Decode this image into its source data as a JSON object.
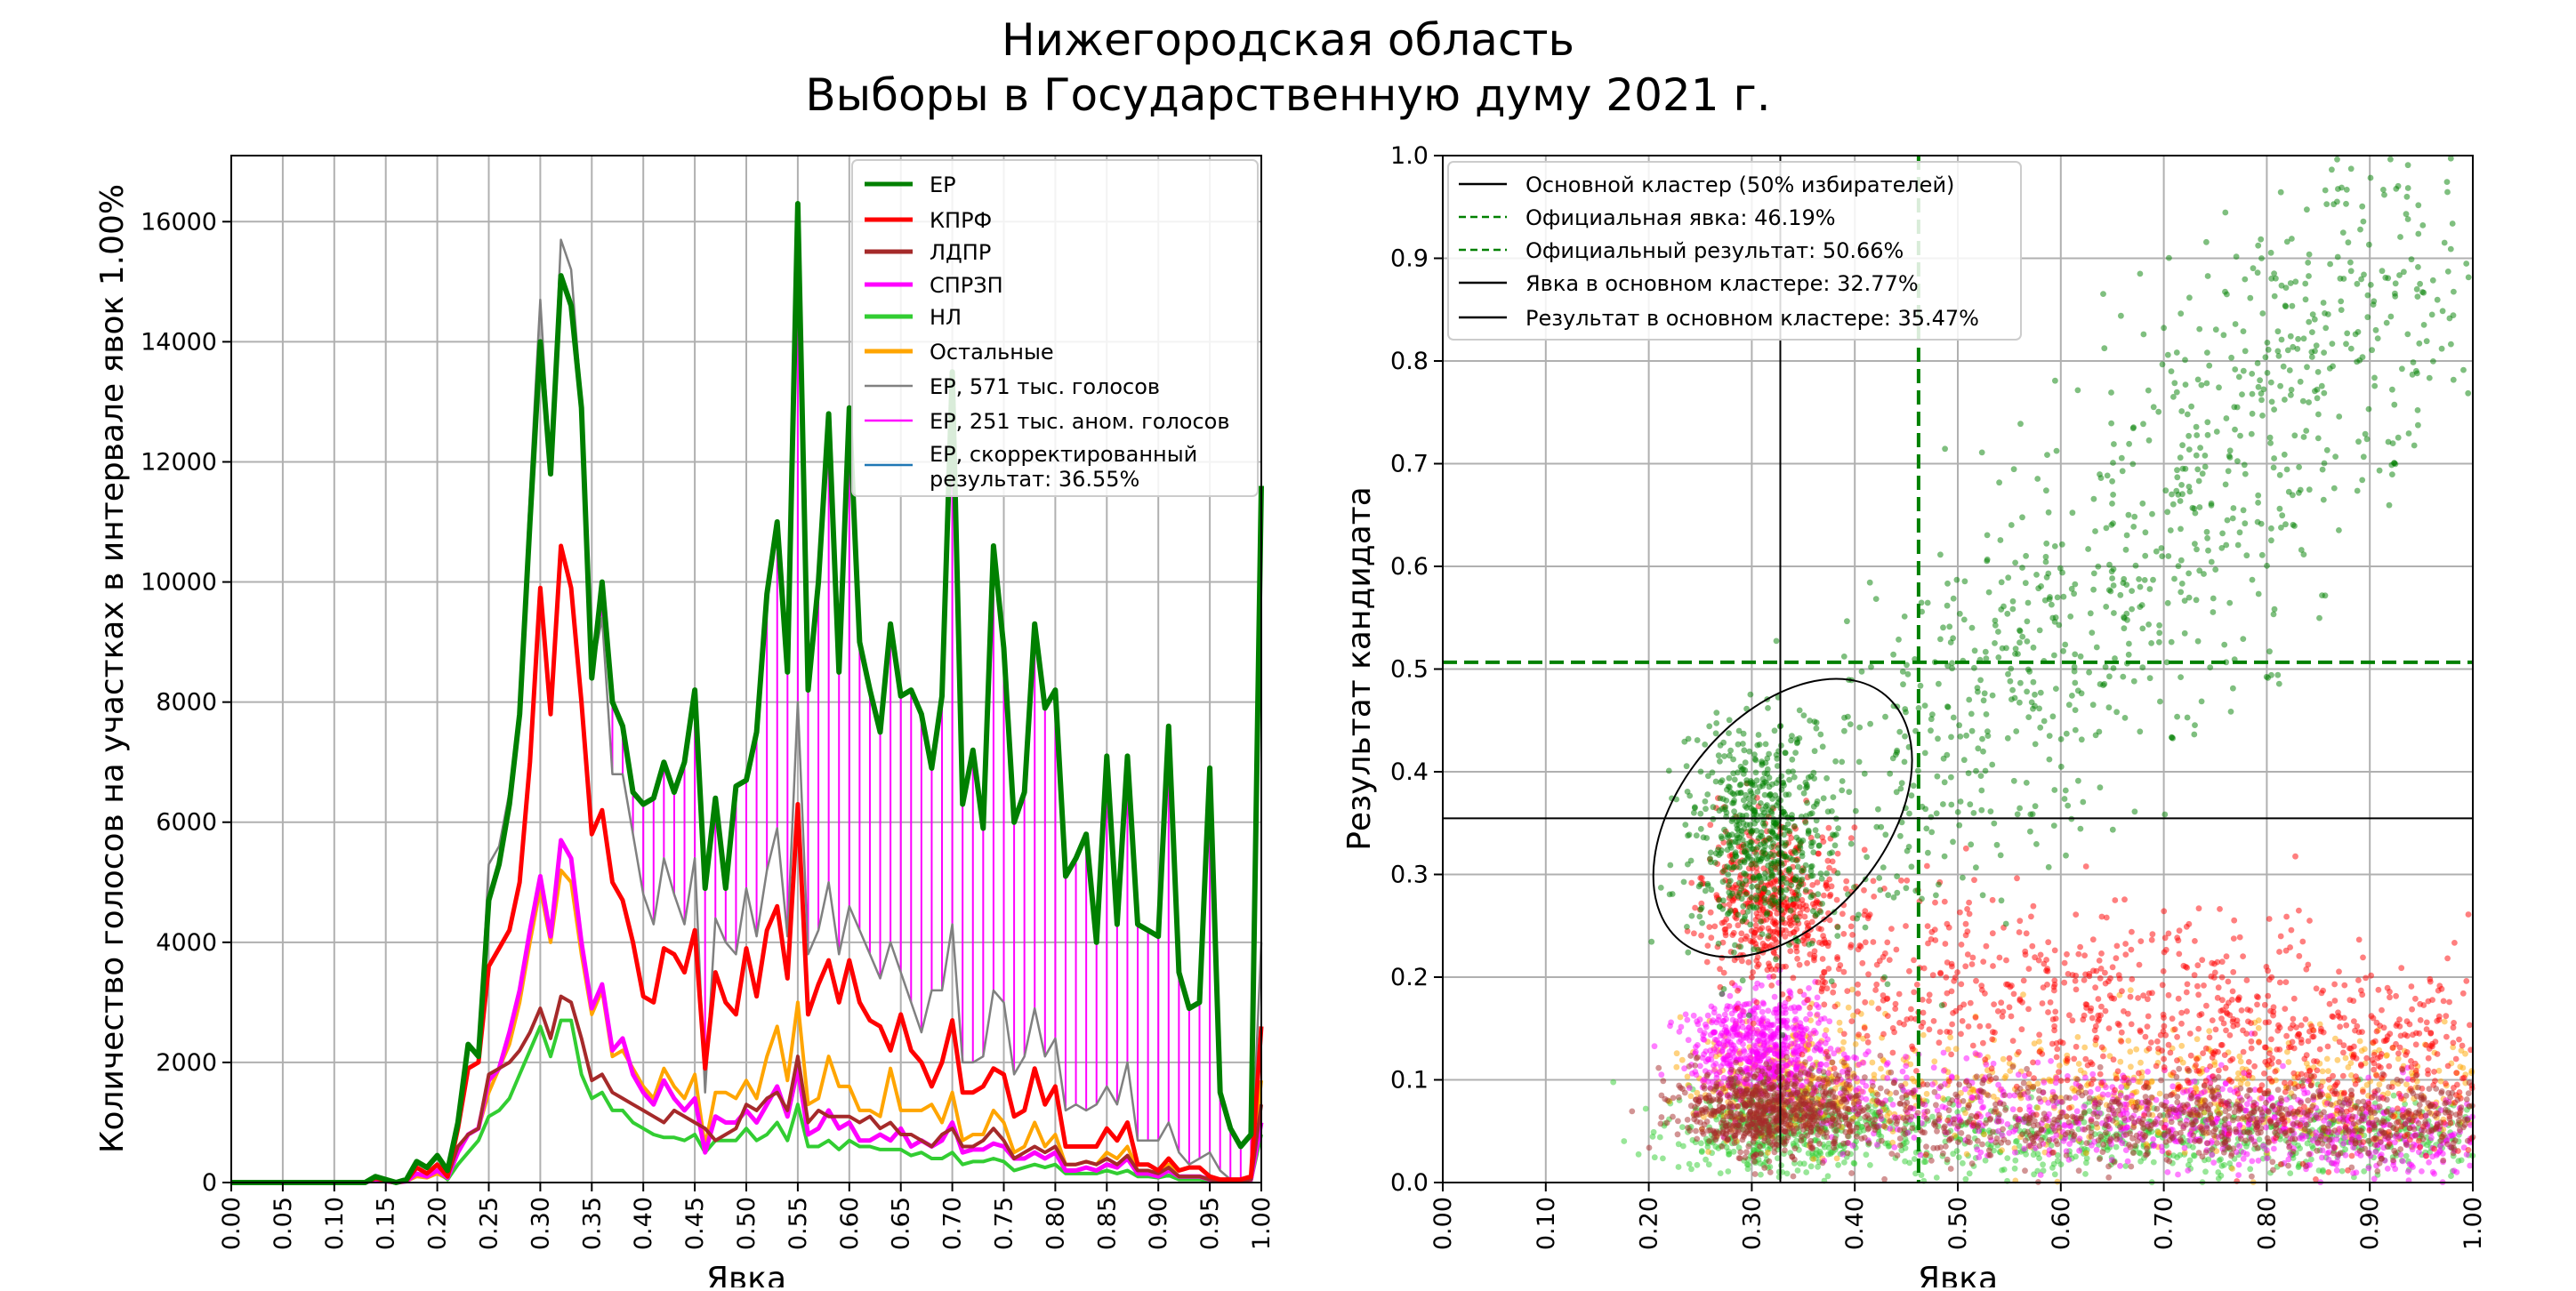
{
  "title": [
    "Нижегородская область",
    "Выборы в Государственную думу 2021 г."
  ],
  "chart_data": [
    {
      "type": "line",
      "xlabel": "Явка",
      "ylabel": "Количество голосов на участках в интервале явок 1.00%",
      "xlim": [
        0,
        1
      ],
      "ylim": [
        0,
        17100
      ],
      "bin_width": 0.01,
      "grid": true,
      "legend_placement": "top-right",
      "xticks": [
        "0.00",
        "0.05",
        "0.10",
        "0.15",
        "0.20",
        "0.25",
        "0.30",
        "0.35",
        "0.40",
        "0.45",
        "0.50",
        "0.55",
        "0.60",
        "0.65",
        "0.70",
        "0.75",
        "0.80",
        "0.85",
        "0.90",
        "0.95",
        "1.00"
      ],
      "yticks": [
        "0",
        "2000",
        "4000",
        "6000",
        "8000",
        "10000",
        "12000",
        "14000",
        "16000"
      ],
      "series": [
        {
          "name": "ЕР",
          "color": "#008000",
          "values": [
            0,
            0,
            0,
            0,
            0,
            0,
            0,
            0,
            0,
            0,
            0,
            0,
            0,
            0,
            100,
            50,
            0,
            50,
            350,
            250,
            450,
            200,
            1000,
            2300,
            2100,
            4700,
            5300,
            6300,
            7800,
            11000,
            14000,
            11800,
            15100,
            14600,
            12900,
            8400,
            10000,
            8000,
            7600,
            6500,
            6300,
            6400,
            7000,
            6500,
            7000,
            8200,
            4900,
            6400,
            4900,
            6600,
            6700,
            7500,
            9800,
            11000,
            8500,
            16300,
            8200,
            10000,
            12800,
            8500,
            12900,
            9000,
            8200,
            7500,
            9300,
            8100,
            8200,
            7800,
            6900,
            8100,
            13500,
            6300,
            7200,
            5900,
            10600,
            8900,
            6000,
            6500,
            9300,
            7900,
            8200,
            5100,
            5400,
            5800,
            4000,
            7100,
            4300,
            7100,
            4300,
            4200,
            4100,
            7600,
            3500,
            2900,
            3000,
            6900,
            1500,
            900,
            600,
            800,
            11600
          ]
        },
        {
          "name": "КПРФ",
          "color": "#ff0000",
          "values": [
            0,
            0,
            0,
            0,
            0,
            0,
            0,
            0,
            0,
            0,
            0,
            0,
            0,
            0,
            80,
            30,
            0,
            30,
            250,
            150,
            300,
            100,
            900,
            1900,
            2000,
            3600,
            3900,
            4200,
            5000,
            7000,
            9900,
            7800,
            10600,
            9900,
            8000,
            5800,
            6200,
            5000,
            4700,
            4000,
            3100,
            3000,
            3900,
            3800,
            3500,
            4200,
            1900,
            3500,
            3000,
            2800,
            3900,
            3100,
            4200,
            4600,
            3400,
            6300,
            2800,
            3300,
            3700,
            3000,
            3700,
            3000,
            2700,
            2600,
            2200,
            2800,
            2200,
            2000,
            1600,
            2000,
            2700,
            1500,
            1500,
            1600,
            1900,
            1800,
            1100,
            1200,
            1900,
            1300,
            1600,
            600,
            600,
            600,
            600,
            900,
            700,
            1000,
            300,
            300,
            200,
            400,
            200,
            250,
            250,
            100,
            50,
            50,
            50,
            100,
            2600
          ]
        },
        {
          "name": "ЛДПР",
          "color": "#a52a2a",
          "values": [
            0,
            0,
            0,
            0,
            0,
            0,
            0,
            0,
            0,
            0,
            0,
            0,
            0,
            0,
            60,
            30,
            0,
            30,
            250,
            150,
            300,
            100,
            600,
            800,
            900,
            1800,
            1900,
            2000,
            2200,
            2500,
            2900,
            2400,
            3100,
            3000,
            2400,
            1700,
            1800,
            1500,
            1400,
            1300,
            1200,
            1100,
            1000,
            1200,
            1100,
            1000,
            900,
            700,
            800,
            900,
            1300,
            1200,
            1400,
            1500,
            1200,
            2100,
            1000,
            1200,
            1100,
            1100,
            1100,
            1000,
            1100,
            900,
            1000,
            800,
            800,
            700,
            600,
            800,
            900,
            600,
            600,
            700,
            900,
            700,
            400,
            500,
            600,
            500,
            600,
            300,
            300,
            350,
            300,
            400,
            300,
            450,
            200,
            200,
            150,
            250,
            100,
            100,
            100,
            50,
            30,
            30,
            30,
            50,
            1300
          ]
        },
        {
          "name": "СПРЗП",
          "color": "#ff00ff",
          "values": [
            0,
            0,
            0,
            0,
            0,
            0,
            0,
            0,
            0,
            0,
            0,
            0,
            0,
            0,
            50,
            20,
            0,
            20,
            150,
            100,
            200,
            80,
            500,
            800,
            900,
            1700,
            1900,
            2500,
            3200,
            4200,
            5100,
            4100,
            5700,
            5400,
            4000,
            2900,
            3300,
            2200,
            2400,
            1800,
            1500,
            1300,
            1700,
            1400,
            1200,
            1400,
            500,
            1100,
            1000,
            1000,
            1200,
            1000,
            1300,
            1600,
            1100,
            1900,
            800,
            900,
            1200,
            900,
            1000,
            700,
            700,
            800,
            700,
            900,
            600,
            700,
            600,
            700,
            1000,
            500,
            550,
            550,
            650,
            600,
            400,
            400,
            500,
            400,
            500,
            200,
            200,
            250,
            200,
            300,
            250,
            400,
            150,
            150,
            100,
            200,
            100,
            100,
            100,
            50,
            30,
            30,
            30,
            50,
            1000
          ]
        },
        {
          "name": "НЛ",
          "color": "#32cd32",
          "values": [
            0,
            0,
            0,
            0,
            0,
            0,
            0,
            0,
            0,
            0,
            0,
            0,
            0,
            0,
            40,
            20,
            0,
            20,
            150,
            100,
            200,
            50,
            300,
            500,
            700,
            1100,
            1200,
            1400,
            1800,
            2200,
            2600,
            2100,
            2700,
            2700,
            1800,
            1400,
            1500,
            1200,
            1200,
            1000,
            900,
            800,
            750,
            750,
            700,
            800,
            500,
            700,
            700,
            700,
            900,
            700,
            800,
            1000,
            700,
            1300,
            600,
            600,
            700,
            550,
            700,
            600,
            600,
            550,
            550,
            550,
            450,
            500,
            400,
            400,
            500,
            300,
            350,
            350,
            400,
            350,
            200,
            250,
            300,
            250,
            300,
            150,
            150,
            150,
            150,
            200,
            150,
            200,
            100,
            100,
            80,
            120,
            50,
            50,
            50,
            30,
            20,
            20,
            20,
            30,
            800
          ]
        },
        {
          "name": "Остальные",
          "color": "#ffa500",
          "values": [
            0,
            0,
            0,
            0,
            0,
            0,
            0,
            0,
            0,
            0,
            0,
            0,
            0,
            0,
            50,
            20,
            0,
            20,
            100,
            80,
            150,
            60,
            500,
            800,
            900,
            1500,
            1900,
            2300,
            3000,
            4000,
            4900,
            4000,
            5200,
            5000,
            3800,
            2800,
            3200,
            2100,
            2200,
            1900,
            1600,
            1400,
            1900,
            1600,
            1400,
            1800,
            600,
            1500,
            1500,
            1400,
            1700,
            1400,
            2100,
            2600,
            1700,
            3000,
            1300,
            1400,
            2100,
            1600,
            1600,
            1200,
            1200,
            1100,
            1900,
            1200,
            1200,
            1200,
            1300,
            1000,
            1500,
            700,
            800,
            800,
            1200,
            1000,
            500,
            600,
            1000,
            600,
            800,
            300,
            300,
            350,
            300,
            500,
            400,
            600,
            200,
            200,
            150,
            300,
            100,
            100,
            100,
            50,
            30,
            30,
            30,
            60,
            1700
          ]
        },
        {
          "name": "ЕР, 571 тыс. голосов",
          "color": "#808080",
          "values": [
            0,
            0,
            0,
            0,
            0,
            0,
            0,
            0,
            0,
            0,
            0,
            0,
            0,
            0,
            100,
            50,
            0,
            50,
            350,
            250,
            450,
            200,
            1000,
            2300,
            2100,
            5300,
            5600,
            6500,
            7900,
            11500,
            14700,
            11800,
            15700,
            15200,
            13000,
            8500,
            9400,
            6800,
            6800,
            5800,
            4800,
            4300,
            5400,
            4800,
            4300,
            5400,
            1500,
            4400,
            4000,
            3800,
            4900,
            4100,
            5200,
            5900,
            4100,
            8000,
            3800,
            4200,
            5000,
            3800,
            4600,
            4200,
            3800,
            3400,
            4000,
            3500,
            3000,
            2500,
            3200,
            3200,
            4300,
            2000,
            2000,
            2100,
            3200,
            3000,
            1800,
            2100,
            2900,
            2100,
            2400,
            1200,
            1300,
            1200,
            1300,
            1600,
            1300,
            2000,
            700,
            700,
            700,
            1000,
            500,
            300,
            400,
            500,
            200,
            50,
            50,
            100,
            4000
          ]
        },
        {
          "name": "ЕР, 251 тыс. аном. голосов",
          "color": "#ff00ff"
        },
        {
          "name": "ЕР, скорректированный результат: 36.55%",
          "name_lines": [
            "ЕР, скорректированный",
            "результат: 36.55%"
          ],
          "color": "#1f77b4"
        }
      ]
    },
    {
      "type": "scatter",
      "xlabel": "Явка",
      "ylabel": "Результат кандидата",
      "xlim": [
        0,
        1
      ],
      "ylim": [
        0,
        1
      ],
      "grid": true,
      "legend_placement": "top-left",
      "xticks": [
        "0.00",
        "0.10",
        "0.20",
        "0.30",
        "0.40",
        "0.50",
        "0.60",
        "0.70",
        "0.80",
        "0.90",
        "1.00"
      ],
      "yticks": [
        "0.0",
        "0.1",
        "0.2",
        "0.3",
        "0.4",
        "0.5",
        "0.6",
        "0.7",
        "0.8",
        "0.9",
        "1.0"
      ],
      "point_colors": {
        "ЕР": "#008000",
        "КПРФ": "#ff0000",
        "ЛДПР": "#a52a2a",
        "СПРЗП": "#ff00ff",
        "НЛ": "#32cd32",
        "Остальные": "#ffa500"
      },
      "cluster_center": [
        0.33,
        0.355
      ],
      "reference_lines": [
        {
          "label": "Основной кластер (50% избирателей)",
          "style": "solid",
          "color": "#000000"
        },
        {
          "label": "Официальная явка: 46.19%",
          "style": "dashed",
          "color": "#008000",
          "orientation": "vertical",
          "value": 0.4619
        },
        {
          "label": "Официальный результат: 50.66%",
          "style": "dashed",
          "color": "#008000",
          "orientation": "horizontal",
          "value": 0.5066
        },
        {
          "label": "Явка в основном кластере: 32.77%",
          "style": "solid",
          "color": "#000000",
          "orientation": "vertical",
          "value": 0.3277
        },
        {
          "label": "Результат в основном кластере: 35.47%",
          "style": "solid",
          "color": "#000000",
          "orientation": "horizontal",
          "value": 0.3547
        }
      ]
    }
  ]
}
